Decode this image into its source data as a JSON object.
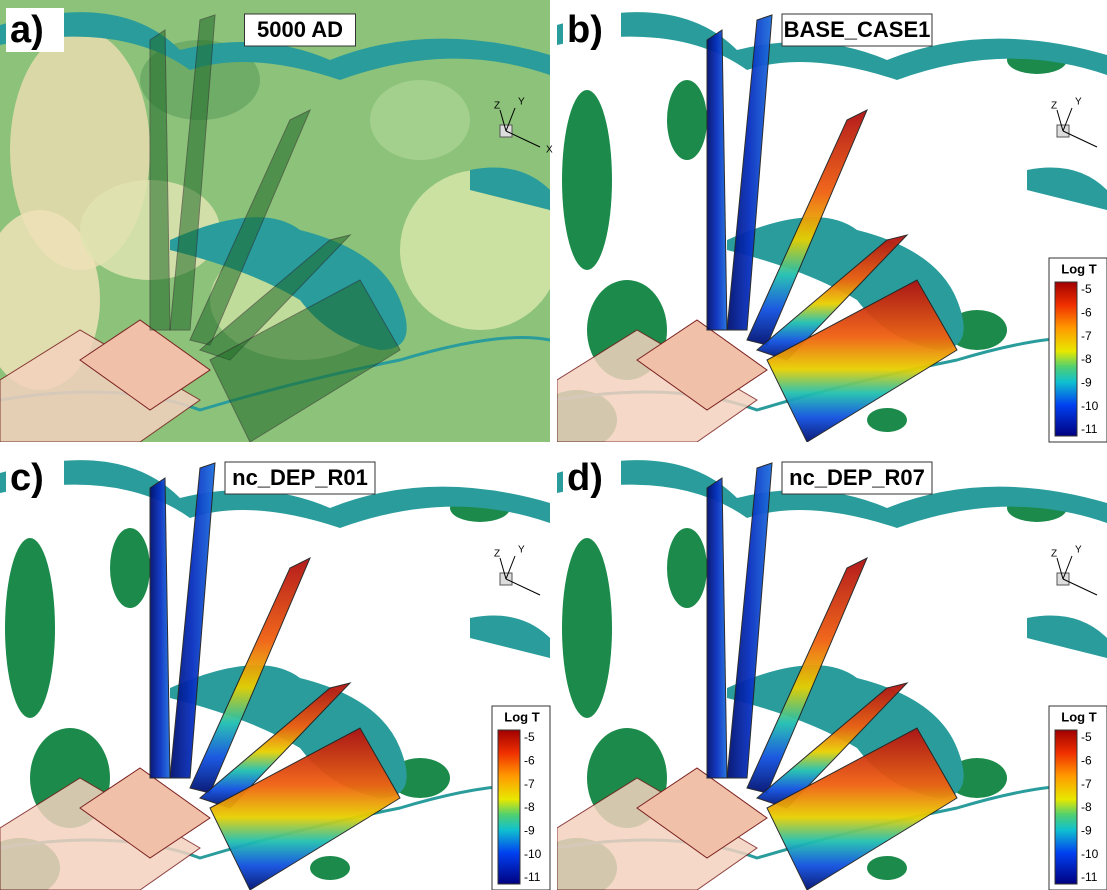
{
  "panels": [
    {
      "label": "a)",
      "title": "5000 AD",
      "axes": [
        "Z",
        "Y",
        "X"
      ]
    },
    {
      "label": "b)",
      "title": "BASE_CASE1",
      "axes": [
        "Z",
        "Y"
      ],
      "colorbar": {
        "title": "Log T",
        "ticks": [
          -5,
          -6,
          -7,
          -8,
          -9,
          -10,
          -11
        ]
      }
    },
    {
      "label": "c)",
      "title": "nc_DEP_R01",
      "axes": [
        "Z",
        "Y"
      ],
      "colorbar": {
        "title": "Log T",
        "ticks": [
          -5,
          -6,
          -7,
          -8,
          -9,
          -10,
          -11
        ]
      }
    },
    {
      "label": "d)",
      "title": "nc_DEP_R07",
      "axes": [
        "Z",
        "Y"
      ],
      "colorbar": {
        "title": "Log T",
        "ticks": [
          -5,
          -6,
          -7,
          -8,
          -9,
          -10,
          -11
        ]
      }
    }
  ]
}
